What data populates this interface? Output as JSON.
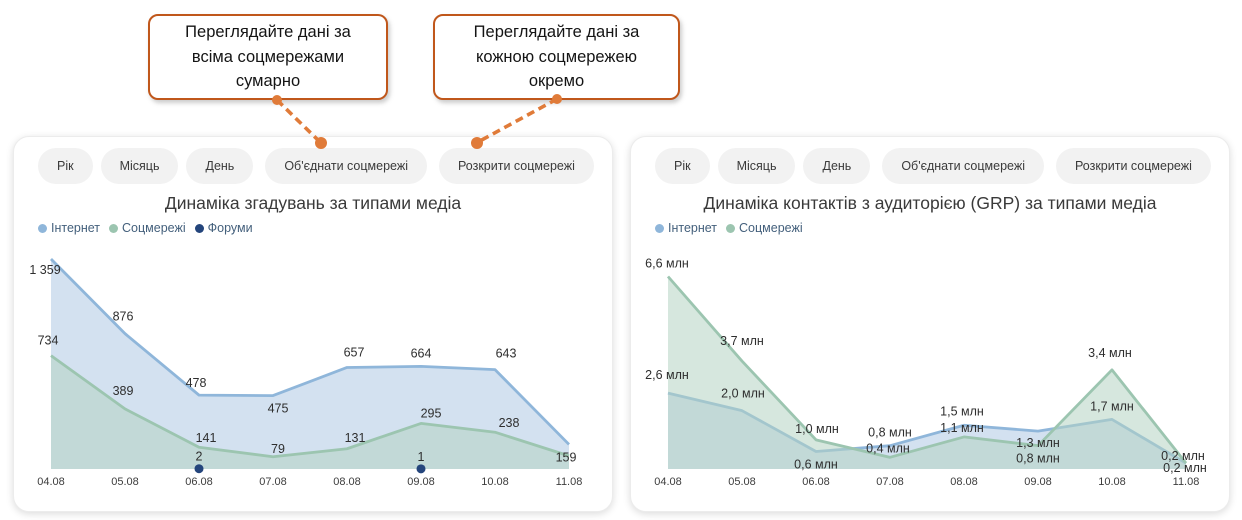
{
  "colors": {
    "accent_orange": "#E07B39",
    "callout_border": "#C0571B",
    "internet_blue": "#8FB6DA",
    "internet_fill": "#AFC9E4",
    "social_green": "#9CC5B0",
    "social_fill": "#B4D4C3",
    "forums_navy": "#24457C",
    "button_bg": "#F2F2F2",
    "panel_bg": "#FFFFFF"
  },
  "callouts": [
    {
      "text": "Переглядайте дані за всіма соцмережами сумарно"
    },
    {
      "text": "Переглядайте дані за кожною соцмережею окремо"
    }
  ],
  "toolbar": {
    "buttons": [
      "Рік",
      "Місяць",
      "День",
      "Об'єднати соцмережі",
      "Розкрити соцмережі"
    ]
  },
  "chart_data": [
    {
      "type": "area",
      "title": "Динаміка згадувань за типами медіа",
      "categories": [
        "04.08",
        "05.08",
        "06.08",
        "07.08",
        "08.08",
        "09.08",
        "10.08",
        "11.08"
      ],
      "ylim": [
        0,
        1359
      ],
      "grid": false,
      "legend_position": "top-left",
      "series": [
        {
          "name": "Інтернет",
          "color": "#8FB6DA",
          "fill": "#AFC9E4",
          "values": [
            1359,
            876,
            478,
            475,
            657,
            664,
            643,
            159
          ],
          "labels": [
            "1 359",
            "876",
            "478",
            "475",
            "657",
            "664",
            "643",
            "159"
          ],
          "label_offsets": [
            [
              -6,
              11
            ],
            [
              -2,
              -17
            ],
            [
              -3,
              -12
            ],
            [
              5,
              13
            ],
            [
              7,
              -15
            ],
            [
              0,
              -13
            ],
            [
              11,
              -16
            ],
            [
              -3,
              13
            ]
          ]
        },
        {
          "name": "Соцмережі",
          "color": "#9CC5B0",
          "fill": "#B4D4C3",
          "values": [
            734,
            389,
            141,
            79,
            131,
            295,
            238,
            85
          ],
          "labels": [
            "734",
            "389",
            "141",
            "79",
            "131",
            "295",
            "238",
            null
          ],
          "label_offsets": [
            [
              -3,
              -15
            ],
            [
              -2,
              -18
            ],
            [
              7,
              -9
            ],
            [
              5,
              -8
            ],
            [
              8,
              -11
            ],
            [
              10,
              -10
            ],
            [
              14,
              -9
            ],
            null
          ]
        },
        {
          "name": "Форуми",
          "color": "#24457C",
          "render": "points",
          "values": [
            null,
            null,
            2,
            null,
            null,
            1,
            null,
            null
          ],
          "labels": [
            null,
            null,
            "2",
            null,
            null,
            "1",
            null,
            null
          ],
          "label_offsets": [
            null,
            null,
            [
              0,
              -12
            ],
            null,
            null,
            [
              0,
              -12
            ],
            null,
            null
          ]
        }
      ]
    },
    {
      "type": "area",
      "title": "Динаміка контактів з аудиторією (GRP) за типами медіа",
      "categories": [
        "04.08",
        "05.08",
        "06.08",
        "07.08",
        "08.08",
        "09.08",
        "10.08",
        "11.08"
      ],
      "ylim": [
        0,
        7.2
      ],
      "grid": false,
      "legend_position": "top-left",
      "unit": "млн",
      "series": [
        {
          "name": "Інтернет",
          "color": "#8FB6DA",
          "fill": "#AFC9E4",
          "values": [
            2.6,
            2.0,
            0.6,
            0.8,
            1.5,
            1.3,
            1.7,
            0.2
          ],
          "labels": [
            "2,6 млн",
            "2,0 млн",
            "0,6 млн",
            "0,8 млн",
            "1,5 млн",
            "1,3 млн",
            "1,7 млн",
            "0,2 млн"
          ],
          "label_offsets": [
            [
              -1,
              -18
            ],
            [
              1,
              -17
            ],
            [
              0,
              13
            ],
            [
              0,
              -13
            ],
            [
              -2,
              -14
            ],
            [
              0,
              12
            ],
            [
              0,
              -13
            ],
            [
              -3,
              -7
            ]
          ]
        },
        {
          "name": "Соцмережі",
          "color": "#9CC5B0",
          "fill": "#B4D4C3",
          "values": [
            6.6,
            3.7,
            1.0,
            0.4,
            1.1,
            0.8,
            3.4,
            0.2
          ],
          "labels": [
            "6,6 млн",
            "3,7 млн",
            "1,0 млн",
            "0,4 млн",
            "1,1 млн",
            "0,8 млн",
            "3,4 млн",
            "0,2 млн"
          ],
          "label_offsets": [
            [
              -1,
              -13
            ],
            [
              0,
              -20
            ],
            [
              1,
              -11
            ],
            [
              -2,
              -9
            ],
            [
              -2,
              -9
            ],
            [
              0,
              13
            ],
            [
              -2,
              -17
            ],
            [
              -1,
              5
            ]
          ]
        }
      ]
    }
  ]
}
